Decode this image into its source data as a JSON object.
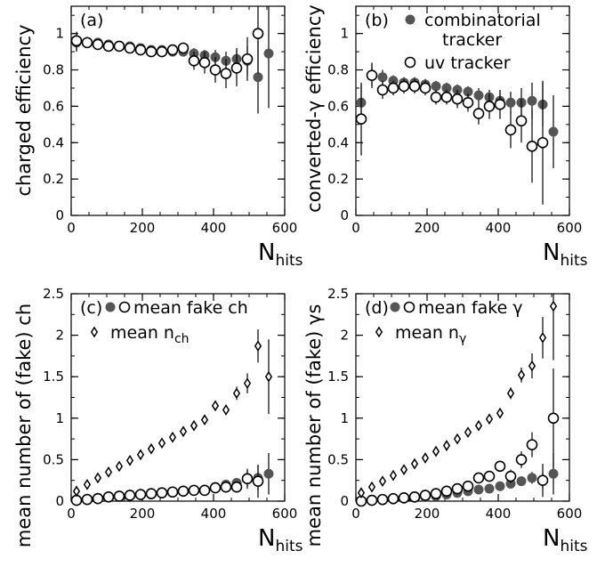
{
  "chart_data": [
    {
      "type": "scatter",
      "panel": "(a)",
      "xlabel_main": "N",
      "xlabel_sub": "hits",
      "ylabel": "charged efficiency",
      "xlim": [
        0,
        600
      ],
      "ylim": [
        0,
        1.15
      ],
      "xticks": [
        0,
        200,
        400,
        600
      ],
      "yticks": [
        0,
        0.2,
        0.4,
        0.6,
        0.8,
        1
      ],
      "series": [
        {
          "marker": "filled",
          "color": "#555555",
          "x": [
            15,
            45,
            75,
            105,
            135,
            165,
            195,
            225,
            255,
            285,
            315,
            345,
            375,
            405,
            435,
            465,
            495,
            525,
            555
          ],
          "y": [
            0.95,
            0.95,
            0.95,
            0.94,
            0.93,
            0.93,
            0.92,
            0.91,
            0.91,
            0.9,
            0.9,
            0.89,
            0.88,
            0.87,
            0.85,
            0.86,
            0.85,
            0.76,
            0.89
          ],
          "err": [
            0.05,
            0.03,
            0.02,
            0.02,
            0.02,
            0.02,
            0.02,
            0.02,
            0.02,
            0.02,
            0.02,
            0.03,
            0.03,
            0.04,
            0.05,
            0.06,
            0.08,
            0.2,
            0.3
          ]
        },
        {
          "marker": "open",
          "color": "#000000",
          "x": [
            15,
            45,
            75,
            105,
            135,
            165,
            195,
            225,
            255,
            285,
            315,
            345,
            375,
            405,
            435,
            465,
            495,
            525
          ],
          "y": [
            0.96,
            0.95,
            0.94,
            0.93,
            0.93,
            0.92,
            0.91,
            0.9,
            0.9,
            0.91,
            0.92,
            0.85,
            0.84,
            0.8,
            0.78,
            0.81,
            0.86,
            1.0
          ],
          "err": [
            0.05,
            0.03,
            0.02,
            0.02,
            0.02,
            0.02,
            0.02,
            0.02,
            0.02,
            0.03,
            0.03,
            0.05,
            0.06,
            0.07,
            0.08,
            0.1,
            0.12,
            0.22
          ]
        }
      ],
      "legend": []
    },
    {
      "type": "scatter",
      "panel": "(b)",
      "xlabel_main": "N",
      "xlabel_sub": "hits",
      "ylabel": "converted-γ efficiency",
      "xlim": [
        0,
        600
      ],
      "ylim": [
        0,
        1.15
      ],
      "xticks": [
        0,
        200,
        400,
        600
      ],
      "yticks": [
        0,
        0.2,
        0.4,
        0.6,
        0.8,
        1
      ],
      "series": [
        {
          "marker": "filled",
          "color": "#555555",
          "x": [
            15,
            45,
            75,
            105,
            135,
            165,
            195,
            225,
            255,
            285,
            315,
            345,
            375,
            405,
            435,
            465,
            495,
            525,
            555
          ],
          "y": [
            0.62,
            0.77,
            0.76,
            0.74,
            0.73,
            0.73,
            0.72,
            0.71,
            0.7,
            0.69,
            0.68,
            0.66,
            0.65,
            0.63,
            0.62,
            0.62,
            0.63,
            0.61,
            0.46
          ],
          "err": [
            0.1,
            0.06,
            0.04,
            0.03,
            0.03,
            0.03,
            0.03,
            0.03,
            0.03,
            0.03,
            0.03,
            0.04,
            0.04,
            0.05,
            0.06,
            0.08,
            0.1,
            0.12,
            0.2
          ]
        },
        {
          "marker": "open",
          "color": "#000000",
          "x": [
            15,
            45,
            75,
            105,
            135,
            165,
            195,
            225,
            255,
            285,
            315,
            345,
            375,
            405,
            435,
            465,
            495,
            525
          ],
          "y": [
            0.53,
            0.77,
            0.69,
            0.7,
            0.71,
            0.71,
            0.7,
            0.65,
            0.65,
            0.64,
            0.62,
            0.56,
            0.6,
            0.61,
            0.47,
            0.52,
            0.38,
            0.4
          ],
          "err": [
            0.2,
            0.07,
            0.05,
            0.04,
            0.04,
            0.04,
            0.04,
            0.04,
            0.04,
            0.05,
            0.05,
            0.06,
            0.07,
            0.08,
            0.1,
            0.12,
            0.2,
            0.34
          ]
        }
      ],
      "legend": [
        {
          "marker": "filled",
          "lines": [
            "combinatorial",
            "tracker"
          ]
        },
        {
          "marker": "open",
          "lines": [
            "uv tracker"
          ]
        }
      ]
    },
    {
      "type": "scatter",
      "panel": "(c)",
      "xlabel_main": "N",
      "xlabel_sub": "hits",
      "ylabel": "mean number of (fake) ch",
      "xlim": [
        0,
        600
      ],
      "ylim": [
        0,
        2.5
      ],
      "xticks": [
        0,
        200,
        400,
        600
      ],
      "yticks": [
        0,
        0.5,
        1,
        1.5,
        2,
        2.5
      ],
      "series": [
        {
          "marker": "filled",
          "color": "#555555",
          "x": [
            15,
            45,
            75,
            105,
            135,
            165,
            195,
            225,
            255,
            285,
            315,
            345,
            375,
            405,
            435,
            465,
            495,
            525,
            555
          ],
          "y": [
            0.01,
            0.03,
            0.04,
            0.05,
            0.06,
            0.07,
            0.08,
            0.09,
            0.1,
            0.11,
            0.12,
            0.13,
            0.14,
            0.17,
            0.2,
            0.22,
            0.27,
            0.28,
            0.33
          ],
          "err": [
            0.01,
            0.01,
            0.01,
            0.01,
            0.01,
            0.01,
            0.01,
            0.01,
            0.01,
            0.01,
            0.01,
            0.02,
            0.02,
            0.03,
            0.04,
            0.06,
            0.1,
            0.15,
            0.25
          ]
        },
        {
          "marker": "open",
          "color": "#000000",
          "x": [
            15,
            45,
            75,
            105,
            135,
            165,
            195,
            225,
            255,
            285,
            315,
            345,
            375,
            405,
            435,
            465,
            495,
            525
          ],
          "y": [
            0.01,
            0.02,
            0.03,
            0.05,
            0.06,
            0.07,
            0.08,
            0.09,
            0.1,
            0.11,
            0.12,
            0.13,
            0.13,
            0.16,
            0.17,
            0.17,
            0.27,
            0.24
          ],
          "err": [
            0.01,
            0.01,
            0.01,
            0.01,
            0.01,
            0.01,
            0.01,
            0.01,
            0.01,
            0.01,
            0.01,
            0.02,
            0.02,
            0.03,
            0.04,
            0.06,
            0.12,
            0.2
          ]
        },
        {
          "marker": "diamond",
          "color": "#000000",
          "x": [
            15,
            45,
            75,
            105,
            135,
            165,
            195,
            225,
            255,
            285,
            315,
            345,
            375,
            405,
            435,
            465,
            495,
            525,
            555
          ],
          "y": [
            0.12,
            0.2,
            0.28,
            0.35,
            0.42,
            0.49,
            0.56,
            0.63,
            0.7,
            0.77,
            0.84,
            0.91,
            0.98,
            1.15,
            1.1,
            1.3,
            1.42,
            1.87,
            1.5
          ],
          "err": [
            0.02,
            0.02,
            0.02,
            0.02,
            0.02,
            0.02,
            0.02,
            0.02,
            0.02,
            0.02,
            0.03,
            0.03,
            0.04,
            0.05,
            0.06,
            0.08,
            0.12,
            0.2,
            0.45
          ]
        }
      ],
      "legend": [
        {
          "marker": "pair",
          "text": "mean fake ch"
        },
        {
          "marker": "diamond",
          "text": "mean n",
          "sub": "ch"
        }
      ]
    },
    {
      "type": "scatter",
      "panel": "(d)",
      "xlabel_main": "N",
      "xlabel_sub": "hits",
      "ylabel": "mean number of (fake) γs",
      "xlim": [
        0,
        600
      ],
      "ylim": [
        0,
        2.5
      ],
      "xticks": [
        0,
        200,
        400,
        600
      ],
      "yticks": [
        0,
        0.5,
        1,
        1.5,
        2,
        2.5
      ],
      "series": [
        {
          "marker": "filled",
          "color": "#555555",
          "x": [
            15,
            45,
            75,
            105,
            135,
            165,
            195,
            225,
            255,
            285,
            315,
            345,
            375,
            405,
            435,
            465,
            495,
            525,
            555
          ],
          "y": [
            0.0,
            0.01,
            0.01,
            0.02,
            0.03,
            0.04,
            0.05,
            0.06,
            0.08,
            0.1,
            0.12,
            0.14,
            0.15,
            0.18,
            0.21,
            0.24,
            0.28,
            0.25,
            0.33
          ],
          "err": [
            0.01,
            0.01,
            0.01,
            0.01,
            0.01,
            0.01,
            0.01,
            0.01,
            0.01,
            0.01,
            0.02,
            0.02,
            0.02,
            0.03,
            0.04,
            0.05,
            0.07,
            0.1,
            0.25
          ]
        },
        {
          "marker": "open",
          "color": "#000000",
          "x": [
            15,
            45,
            75,
            105,
            135,
            165,
            195,
            225,
            255,
            285,
            315,
            345,
            375,
            405,
            435,
            465,
            495,
            525,
            555
          ],
          "y": [
            0.0,
            0.01,
            0.02,
            0.03,
            0.04,
            0.05,
            0.07,
            0.09,
            0.12,
            0.15,
            0.18,
            0.28,
            0.3,
            0.42,
            0.3,
            0.5,
            0.68,
            0.25,
            1.0
          ],
          "err": [
            0.01,
            0.01,
            0.01,
            0.01,
            0.01,
            0.01,
            0.01,
            0.01,
            0.02,
            0.02,
            0.03,
            0.04,
            0.05,
            0.06,
            0.08,
            0.1,
            0.15,
            0.2,
            0.6
          ]
        },
        {
          "marker": "diamond",
          "color": "#000000",
          "x": [
            15,
            45,
            75,
            105,
            135,
            165,
            195,
            225,
            255,
            285,
            315,
            345,
            375,
            405,
            435,
            465,
            495,
            525,
            555
          ],
          "y": [
            0.1,
            0.17,
            0.24,
            0.31,
            0.38,
            0.45,
            0.52,
            0.6,
            0.67,
            0.75,
            0.83,
            0.91,
            0.99,
            1.06,
            1.3,
            1.52,
            1.63,
            1.97,
            2.35
          ],
          "err": [
            0.02,
            0.02,
            0.02,
            0.02,
            0.02,
            0.02,
            0.02,
            0.02,
            0.02,
            0.02,
            0.03,
            0.03,
            0.04,
            0.05,
            0.07,
            0.09,
            0.15,
            0.25,
            0.65
          ]
        }
      ],
      "legend": [
        {
          "marker": "pair",
          "text": "mean fake γ"
        },
        {
          "marker": "diamond",
          "text": "mean n",
          "sub": "γ"
        }
      ]
    }
  ]
}
